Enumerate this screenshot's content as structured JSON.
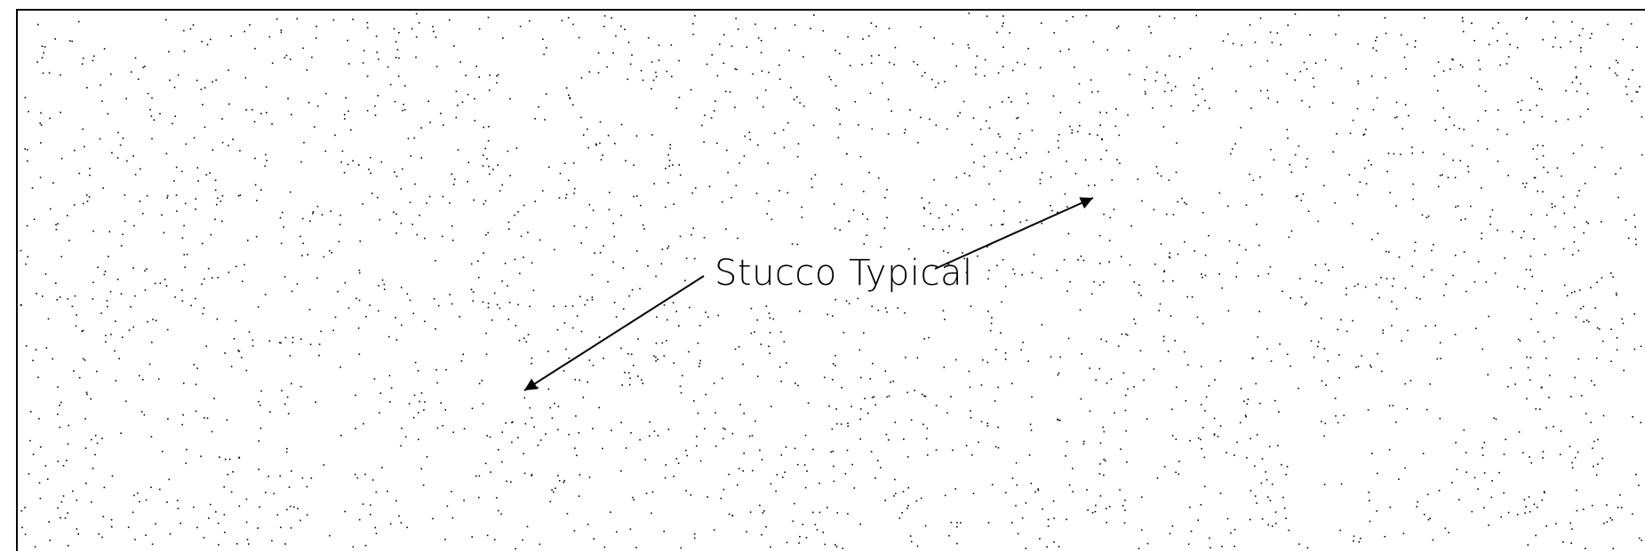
{
  "drawing": {
    "annotation": {
      "label": "Stucco Typical"
    },
    "colors": {
      "ink": "#000000",
      "paper": "#ffffff"
    },
    "hatch": {
      "pattern": "stucco",
      "dot_color": "#000000"
    }
  }
}
